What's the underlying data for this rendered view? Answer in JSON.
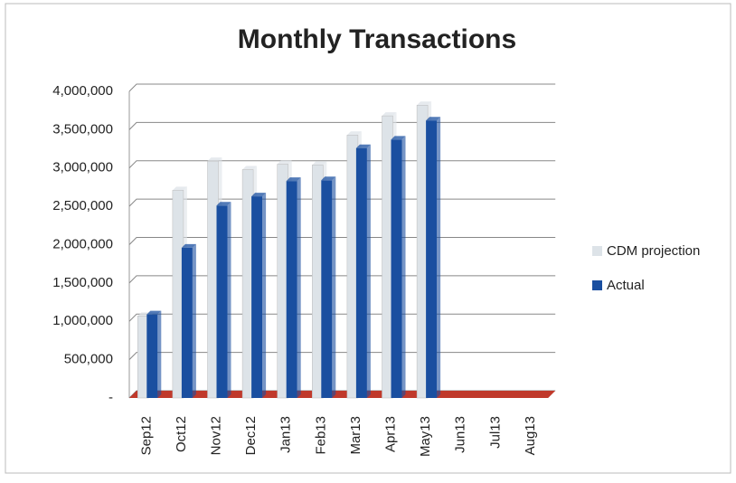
{
  "chart_data": {
    "type": "bar",
    "title": "Monthly Transactions",
    "categories": [
      "Sep12",
      "Oct12",
      "Nov12",
      "Dec12",
      "Jan13",
      "Feb13",
      "Mar13",
      "Apr13",
      "May13",
      "Jun13",
      "Jul13",
      "Aug13"
    ],
    "series": [
      {
        "name": "CDM projection",
        "color": "#dde3e8",
        "values": [
          1070000,
          2710000,
          3090000,
          2980000,
          3050000,
          3040000,
          3430000,
          3680000,
          3820000,
          null,
          null,
          null
        ]
      },
      {
        "name": "Actual",
        "color": "#1a4fa0",
        "values": [
          1090000,
          1960000,
          2510000,
          2630000,
          2830000,
          2840000,
          3260000,
          3370000,
          3620000,
          null,
          null,
          null
        ]
      }
    ],
    "ylim": [
      0,
      4000000
    ],
    "yticks": [
      {
        "value": 0,
        "label": "-"
      },
      {
        "value": 500000,
        "label": "500,000"
      },
      {
        "value": 1000000,
        "label": "1,000,000"
      },
      {
        "value": 1500000,
        "label": "1,500,000"
      },
      {
        "value": 2000000,
        "label": "2,000,000"
      },
      {
        "value": 2500000,
        "label": "2,500,000"
      },
      {
        "value": 3000000,
        "label": "3,000,000"
      },
      {
        "value": 3500000,
        "label": "3,500,000"
      },
      {
        "value": 4000000,
        "label": "4,000,000"
      }
    ],
    "grid": true,
    "legend": "right"
  }
}
